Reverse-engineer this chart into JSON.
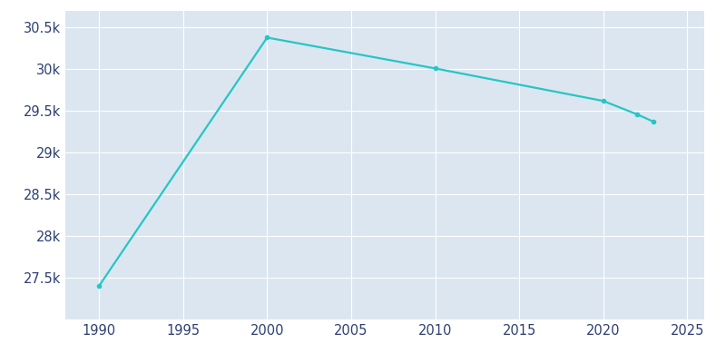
{
  "years": [
    1990,
    2000,
    2010,
    2020,
    2022,
    2023
  ],
  "population": [
    27400,
    30380,
    30010,
    29620,
    29460,
    29370
  ],
  "line_color": "#26c6c6",
  "marker": "o",
  "marker_size": 3,
  "line_width": 1.6,
  "fig_bg_color": "#ffffff",
  "plot_bg_color": "#dce6f0",
  "xlim": [
    1988,
    2026
  ],
  "ylim": [
    27000,
    30700
  ],
  "xticks": [
    1990,
    1995,
    2000,
    2005,
    2010,
    2015,
    2020,
    2025
  ],
  "yticks": [
    27500,
    28000,
    28500,
    29000,
    29500,
    30000,
    30500
  ],
  "grid_color": "#ffffff",
  "tick_label_color": "#2e4074",
  "tick_fontsize": 10.5
}
